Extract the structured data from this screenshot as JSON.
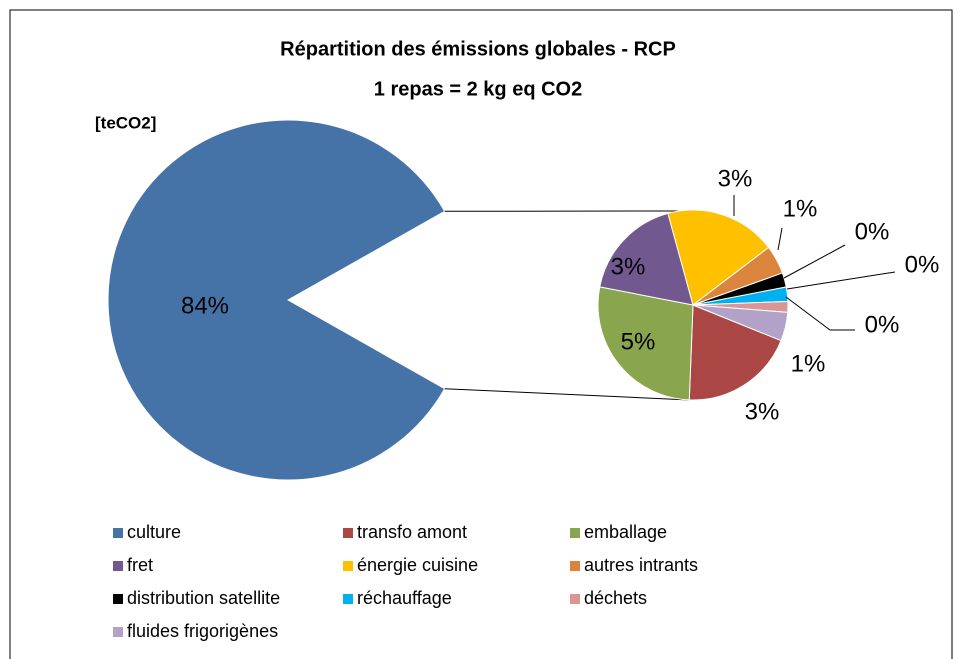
{
  "chart_data": {
    "type": "pie-of-pie",
    "title": "Répartition des émissions globales - RCP",
    "subtitle": "1 repas = 2 kg eq CO2",
    "unit_label": "[teCO2]",
    "categories": [
      "culture",
      "transfo amont",
      "emballage",
      "fret",
      "énergie cuisine",
      "autres intrants",
      "distribution satellite",
      "réchauffage",
      "déchets",
      "fluides frigorigènes"
    ],
    "values": [
      83.6,
      3.2,
      4.5,
      2.9,
      3.1,
      0.8,
      0.4,
      0.4,
      0.3,
      0.8
    ],
    "value_labels": [
      "84%",
      "3%",
      "5%",
      "3%",
      "3%",
      "1%",
      "0%",
      "0%",
      "0%",
      "1%"
    ],
    "colors": [
      "#4572a7",
      "#aa4643",
      "#89a54e",
      "#71588f",
      "#ffc000",
      "#db843d",
      "#000000",
      "#00b0f0",
      "#d99694",
      "#b3a2c7"
    ],
    "legend": "bottom"
  }
}
